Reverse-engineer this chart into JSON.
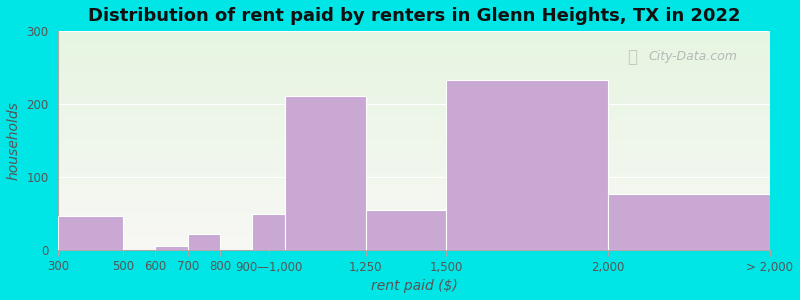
{
  "title": "Distribution of rent paid by renters in Glenn Heights, TX in 2022",
  "xlabel": "rent paid ($)",
  "ylabel": "households",
  "tick_positions": [
    300,
    500,
    600,
    700,
    800,
    900,
    1000,
    1250,
    1500,
    2000,
    2500
  ],
  "tick_labels": [
    "300",
    "500",
    "600",
    "700",
    "800",
    "900—1,000",
    "1,250",
    "1,500",
    "2,000",
    "> 2,000",
    ""
  ],
  "bar_lefts": [
    300,
    500,
    600,
    700,
    800,
    900,
    1000,
    1250,
    1500,
    2000
  ],
  "bar_rights": [
    500,
    600,
    700,
    800,
    900,
    1000,
    1250,
    1500,
    2000,
    2500
  ],
  "bar_values": [
    47,
    0,
    5,
    22,
    0,
    50,
    210,
    55,
    232,
    77
  ],
  "bar_color": "#c9a8d4",
  "background_color_outer": "#00e5e5",
  "plot_bg_start": "#e6f5e1",
  "plot_bg_end": "#f8f8f5",
  "ylim": [
    0,
    300
  ],
  "yticks": [
    0,
    100,
    200,
    300
  ],
  "title_fontsize": 13,
  "axis_label_fontsize": 10,
  "tick_fontsize": 8.5,
  "watermark": "City-Data.com"
}
